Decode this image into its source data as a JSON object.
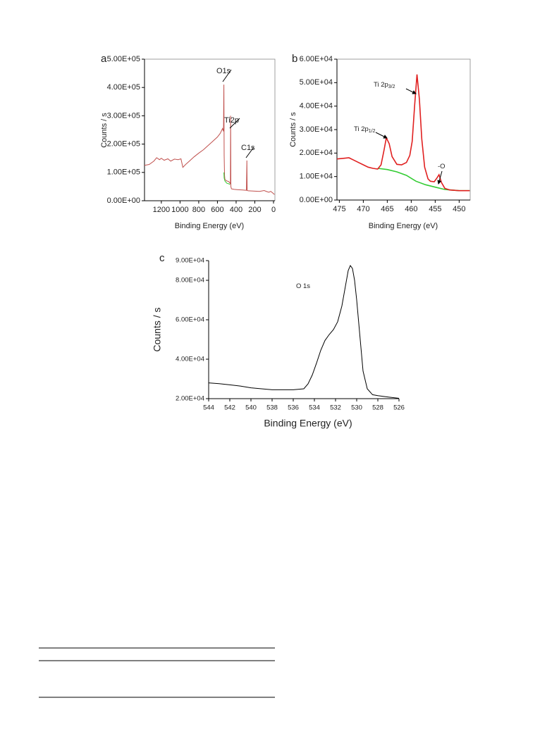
{
  "chart_data": [
    {
      "type": "line",
      "panel_label": "a",
      "xlabel": "Binding Energy (eV)",
      "ylabel": "Counts / s",
      "xlim": [
        1380,
        -15
      ],
      "ylim": [
        0,
        500000
      ],
      "xticks": [
        1200,
        1000,
        800,
        600,
        400,
        200,
        0
      ],
      "yticks": [
        {
          "value": 0,
          "label": "0.00E+00"
        },
        {
          "value": 100000,
          "label": "1.00E+05"
        },
        {
          "value": 200000,
          "label": "2.00E+05"
        },
        {
          "value": 300000,
          "label": "3.00E+05"
        },
        {
          "value": 400000,
          "label": "4.00E+05"
        },
        {
          "value": 500000,
          "label": "5.00E+05"
        }
      ],
      "frame": true,
      "series": [
        {
          "color": "#c0504d",
          "x": [
            1380,
            1330,
            1280,
            1250,
            1220,
            1200,
            1170,
            1130,
            1100,
            1060,
            1020,
            990,
            970,
            940,
            900,
            850,
            800,
            750,
            700,
            650,
            600,
            570,
            545,
            535,
            531,
            528,
            524,
            520,
            500,
            480,
            465,
            461,
            459,
            456,
            450,
            420,
            380,
            330,
            300,
            290,
            285,
            282,
            270,
            200,
            150,
            100,
            70,
            50,
            30,
            10,
            0,
            -10
          ],
          "values": [
            125000,
            128000,
            140000,
            152000,
            145000,
            150000,
            143000,
            148000,
            140000,
            147000,
            145000,
            148000,
            118000,
            128000,
            140000,
            155000,
            168000,
            180000,
            195000,
            210000,
            225000,
            238000,
            255000,
            245000,
            410000,
            160000,
            90000,
            75000,
            70000,
            68000,
            62000,
            60000,
            300000,
            50000,
            42000,
            40000,
            39000,
            38000,
            37000,
            37000,
            142000,
            36000,
            35000,
            34000,
            33000,
            36000,
            32000,
            30000,
            33000,
            28000,
            25000,
            22000
          ]
        },
        {
          "color": "#33cc33",
          "x": [
            531,
            528,
            520,
            500,
            480,
            465
          ],
          "values": [
            100000,
            80000,
            70000,
            62000,
            60000,
            57000
          ]
        }
      ],
      "annotations": [
        {
          "text": "O1s"
        },
        {
          "text": "Ti2p"
        },
        {
          "text": "C1s"
        }
      ]
    },
    {
      "type": "line",
      "panel_label": "b",
      "xlabel": "Binding Energy (eV)",
      "ylabel": "Counts / s",
      "xlim": [
        475.5,
        447.7
      ],
      "ylim": [
        0,
        60000
      ],
      "xticks": [
        475,
        470,
        465,
        460,
        455,
        450
      ],
      "yticks": [
        {
          "value": 0,
          "label": "0.00E+00"
        },
        {
          "value": 10000,
          "label": "1.00E+04"
        },
        {
          "value": 20000,
          "label": "2.00E+04"
        },
        {
          "value": 30000,
          "label": "3.00E+04"
        },
        {
          "value": 40000,
          "label": "4.00E+04"
        },
        {
          "value": 50000,
          "label": "5.00E+04"
        },
        {
          "value": 60000,
          "label": "6.00E+04"
        }
      ],
      "frame": true,
      "series": [
        {
          "color": "#33cc33",
          "x": [
            467,
            465,
            463,
            461,
            459,
            457,
            455,
            453,
            450,
            447.8
          ],
          "values": [
            13500,
            13000,
            12000,
            10500,
            8000,
            6500,
            5500,
            4500,
            4000,
            4000
          ]
        },
        {
          "color": "#e02020",
          "x": [
            475.5,
            474,
            473,
            472,
            471,
            470,
            469,
            468,
            467,
            466.3,
            465.7,
            465.2,
            464.6,
            464,
            463,
            462,
            461,
            460.3,
            459.8,
            459.3,
            458.8,
            458.3,
            457.8,
            457.2,
            456.5,
            456,
            455.2,
            454.6,
            454.2,
            453.7,
            453,
            452,
            450,
            447.8
          ],
          "values": [
            17500,
            17800,
            18000,
            17000,
            16000,
            15000,
            14000,
            13500,
            13200,
            15000,
            21000,
            26500,
            24000,
            18500,
            15200,
            15000,
            16000,
            19000,
            25000,
            40000,
            53500,
            43000,
            26000,
            14000,
            9000,
            8000,
            7800,
            9500,
            10800,
            7500,
            5000,
            4300,
            4000,
            4000
          ]
        }
      ],
      "annotations": [
        {
          "text": "Ti 2p",
          "sub": "3/2"
        },
        {
          "text": "Ti 2p",
          "sub": "1/2"
        },
        {
          "text": "-O"
        }
      ]
    },
    {
      "type": "line",
      "panel_label": "c",
      "xlabel": "Binding Energy (eV)",
      "ylabel": "Counts / s",
      "xlim": [
        544,
        526
      ],
      "ylim": [
        20000,
        90000
      ],
      "xticks": [
        544,
        542,
        540,
        538,
        536,
        534,
        532,
        530,
        528,
        526
      ],
      "yticks": [
        {
          "value": 20000,
          "label": "2.00E+04"
        },
        {
          "value": 40000,
          "label": "4.00E+04"
        },
        {
          "value": 60000,
          "label": "6.00E+04"
        },
        {
          "value": 80000,
          "label": "8.00E+04"
        },
        {
          "value": 90000,
          "label": "9.00E+04"
        }
      ],
      "frame": false,
      "series": [
        {
          "color": "#000000",
          "x": [
            544,
            543,
            542,
            541,
            540,
            539,
            538,
            537,
            536,
            535,
            534.6,
            534.2,
            533.8,
            533.4,
            533,
            532.6,
            532.2,
            531.8,
            531.4,
            531.1,
            530.8,
            530.6,
            530.4,
            530.2,
            530,
            529.7,
            529.4,
            529,
            528.5,
            528,
            527,
            526
          ],
          "values": [
            28000,
            27600,
            27000,
            26400,
            25500,
            25000,
            24500,
            24500,
            24500,
            25000,
            27500,
            32000,
            38000,
            44500,
            49500,
            52500,
            55000,
            59000,
            67000,
            76000,
            85000,
            87500,
            86000,
            80000,
            70000,
            52000,
            34000,
            25000,
            22000,
            21500,
            20800,
            20200
          ]
        }
      ],
      "annotations": [
        {
          "text": "O 1s"
        }
      ]
    }
  ]
}
